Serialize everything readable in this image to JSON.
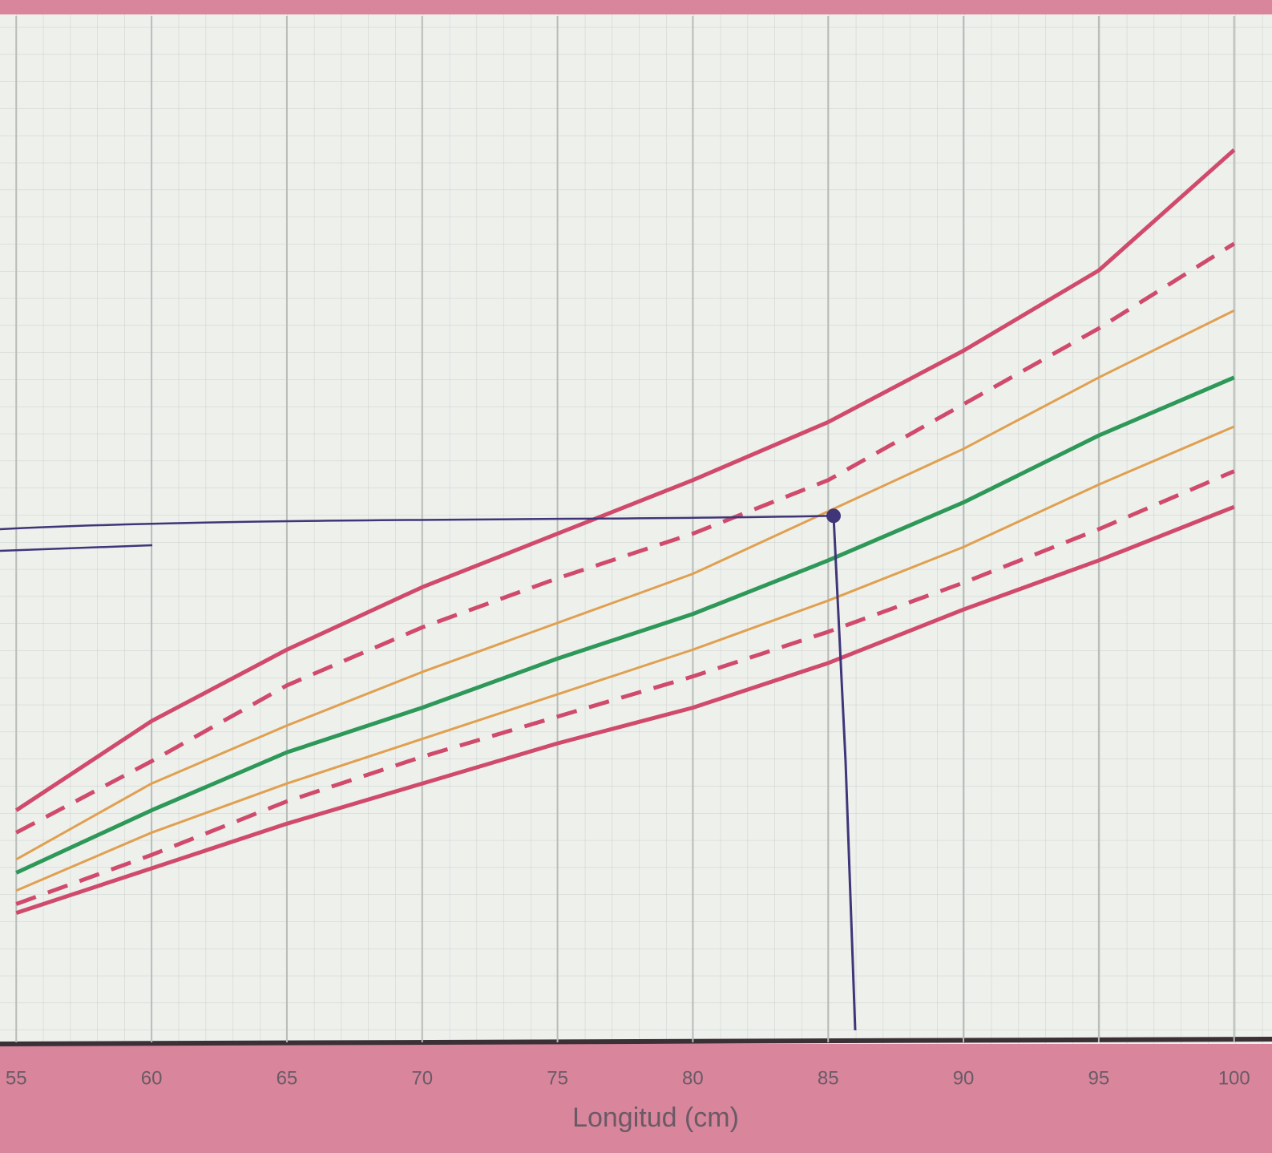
{
  "chart_data": {
    "type": "line",
    "x_label": "Longitud (cm)",
    "x": [
      55,
      60,
      65,
      70,
      75,
      80,
      85,
      90,
      95,
      100
    ],
    "xlim": [
      54.4,
      101.4
    ],
    "xticks": [
      55,
      60,
      65,
      70,
      75,
      80,
      85,
      90,
      95,
      100
    ],
    "ylim": [
      1,
      24
    ],
    "grid": true,
    "series": [
      {
        "color": "#d04a6c",
        "dash": false,
        "values": [
          6.2,
          8.2,
          9.8,
          11.2,
          12.4,
          13.6,
          14.9,
          16.5,
          18.3,
          21.0
        ]
      },
      {
        "color": "#d04a6c",
        "dash": true,
        "values": [
          5.7,
          7.3,
          9.0,
          10.3,
          11.4,
          12.4,
          13.6,
          15.3,
          17.0,
          18.9
        ]
      },
      {
        "color": "#e0a050",
        "dash": false,
        "values": [
          5.1,
          6.8,
          8.1,
          9.3,
          10.4,
          11.5,
          12.9,
          14.3,
          15.9,
          17.4
        ]
      },
      {
        "color": "#2e9858",
        "dash": false,
        "values": [
          4.8,
          6.2,
          7.5,
          8.5,
          9.6,
          10.6,
          11.8,
          13.1,
          14.6,
          15.9
        ]
      },
      {
        "color": "#e0a050",
        "dash": false,
        "values": [
          4.4,
          5.7,
          6.8,
          7.8,
          8.8,
          9.8,
          10.9,
          12.1,
          13.5,
          14.8
        ]
      },
      {
        "color": "#d04a6c",
        "dash": true,
        "values": [
          4.1,
          5.2,
          6.4,
          7.4,
          8.3,
          9.2,
          10.2,
          11.3,
          12.5,
          13.8
        ]
      },
      {
        "color": "#d04a6c",
        "dash": false,
        "values": [
          3.9,
          4.9,
          5.9,
          6.8,
          7.7,
          8.5,
          9.5,
          10.7,
          11.8,
          13.0
        ]
      }
    ],
    "point": {
      "x": 85.2,
      "y": 12.8,
      "color": "#3f3578"
    }
  }
}
